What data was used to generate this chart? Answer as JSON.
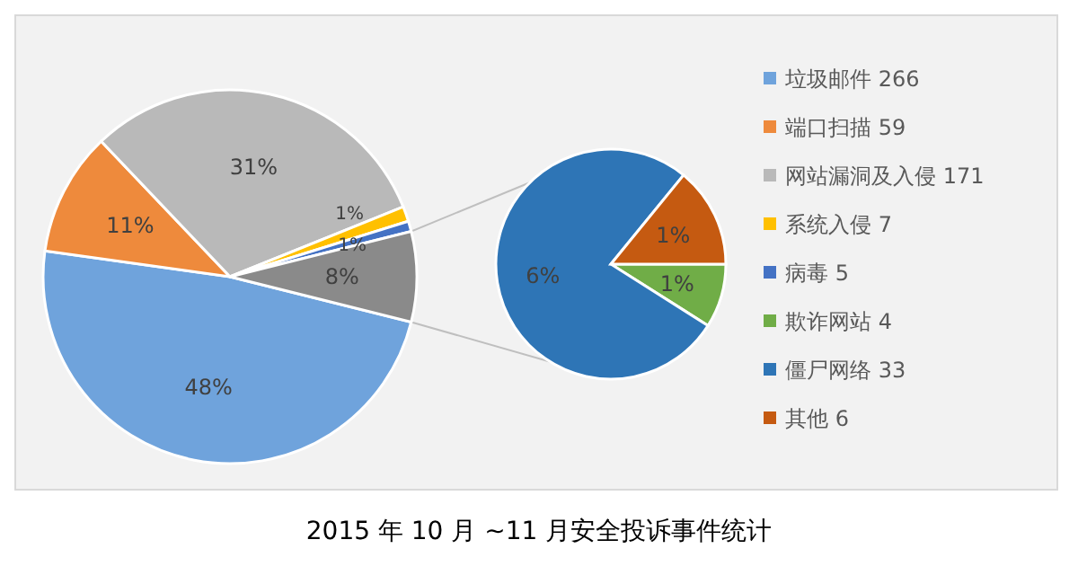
{
  "chart_data": [
    {
      "type": "pie",
      "title": "2015 年 10 月 ~11 月安全投诉事件统计",
      "categories": [
        "垃圾邮件 266",
        "端口扫描 59",
        "网站漏洞及入侵 171",
        "系统入侵 7",
        "病毒 5",
        null
      ],
      "values": [
        48.3,
        10.7,
        31.0,
        1.3,
        0.9,
        7.8
      ],
      "colors": [
        "#6fa3dc",
        "#ee8a3c",
        "#b9b9b9",
        "#ffc000",
        "#4472c4",
        "#8a8a8a"
      ],
      "value_labels": [
        "48%",
        "11%",
        "31%",
        "1%",
        "1%",
        "8%"
      ],
      "legend": "right"
    },
    {
      "type": "pie",
      "categories": [
        "欺诈网站 4",
        "僵尸网络 33",
        "其他 6"
      ],
      "values": [
        0.7,
        6.0,
        1.1
      ],
      "colors": [
        "#70ad47",
        "#2e75b6",
        "#c55a11"
      ],
      "value_labels": [
        "1%",
        "6%",
        "1%"
      ],
      "legend": "right"
    }
  ]
}
